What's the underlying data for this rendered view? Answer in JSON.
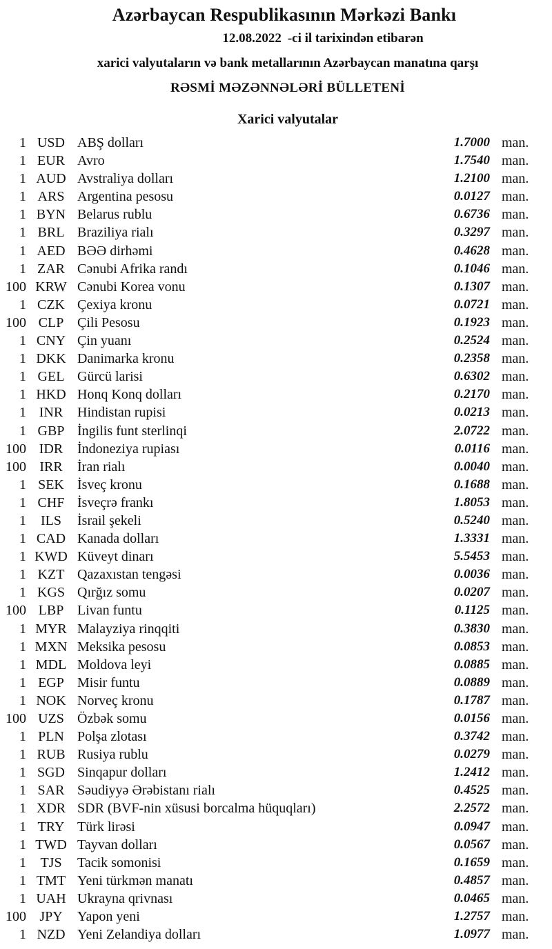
{
  "header": {
    "bank_name": "Azərbaycan Respublikasının Mərkəzi Bankı",
    "date": "12.08.2022",
    "date_suffix": "-ci il tarixindən etibarən",
    "subject_line": "xarici valyutaların və bank metallarının Azərbaycan manatına qarşı",
    "bulletin_title": "RƏSMİ MƏZƏNNƏLƏRİ BÜLLETENİ"
  },
  "section_title": "Xarici valyutalar",
  "unit_label": "man.",
  "text_color": "#111111",
  "background_color": "#ffffff",
  "rates": [
    {
      "nominal": "1",
      "code": "USD",
      "name": "ABŞ dolları",
      "rate": "1.7000"
    },
    {
      "nominal": "1",
      "code": "EUR",
      "name": "Avro",
      "rate": "1.7540"
    },
    {
      "nominal": "1",
      "code": "AUD",
      "name": "Avstraliya dolları",
      "rate": "1.2100"
    },
    {
      "nominal": "1",
      "code": "ARS",
      "name": "Argentina pesosu",
      "rate": "0.0127"
    },
    {
      "nominal": "1",
      "code": "BYN",
      "name": "Belarus rublu",
      "rate": "0.6736"
    },
    {
      "nominal": "1",
      "code": "BRL",
      "name": "Braziliya rialı",
      "rate": "0.3297"
    },
    {
      "nominal": "1",
      "code": "AED",
      "name": "BƏƏ dirhəmi",
      "rate": "0.4628"
    },
    {
      "nominal": "1",
      "code": "ZAR",
      "name": "Cənubi Afrika randı",
      "rate": "0.1046"
    },
    {
      "nominal": "100",
      "code": "KRW",
      "name": "Cənubi Korea vonu",
      "rate": "0.1307"
    },
    {
      "nominal": "1",
      "code": "CZK",
      "name": "Çexiya kronu",
      "rate": "0.0721"
    },
    {
      "nominal": "100",
      "code": "CLP",
      "name": "Çili Pesosu",
      "rate": "0.1923"
    },
    {
      "nominal": "1",
      "code": "CNY",
      "name": "Çin yuanı",
      "rate": "0.2524"
    },
    {
      "nominal": "1",
      "code": "DKK",
      "name": "Danimarka kronu",
      "rate": "0.2358"
    },
    {
      "nominal": "1",
      "code": "GEL",
      "name": "Gürcü larisi",
      "rate": "0.6302"
    },
    {
      "nominal": "1",
      "code": "HKD",
      "name": "Honq Konq dolları",
      "rate": "0.2170"
    },
    {
      "nominal": "1",
      "code": "INR",
      "name": "Hindistan rupisi",
      "rate": "0.0213"
    },
    {
      "nominal": "1",
      "code": "GBP",
      "name": "İngilis funt sterlinqi",
      "rate": "2.0722"
    },
    {
      "nominal": "100",
      "code": "IDR",
      "name": "İndoneziya rupiası",
      "rate": "0.0116"
    },
    {
      "nominal": "100",
      "code": "IRR",
      "name": "İran rialı",
      "rate": "0.0040"
    },
    {
      "nominal": "1",
      "code": "SEK",
      "name": "İsveç kronu",
      "rate": "0.1688"
    },
    {
      "nominal": "1",
      "code": "CHF",
      "name": "İsveçrə frankı",
      "rate": "1.8053"
    },
    {
      "nominal": "1",
      "code": "ILS",
      "name": "İsrail şekeli",
      "rate": "0.5240"
    },
    {
      "nominal": "1",
      "code": "CAD",
      "name": "Kanada dolları",
      "rate": "1.3331"
    },
    {
      "nominal": "1",
      "code": "KWD",
      "name": "Küveyt dinarı",
      "rate": "5.5453"
    },
    {
      "nominal": "1",
      "code": "KZT",
      "name": "Qazaxıstan tengəsi",
      "rate": "0.0036"
    },
    {
      "nominal": "1",
      "code": "KGS",
      "name": "Qırğız somu",
      "rate": "0.0207"
    },
    {
      "nominal": "100",
      "code": "LBP",
      "name": "Livan funtu",
      "rate": "0.1125"
    },
    {
      "nominal": "1",
      "code": "MYR",
      "name": "Malayziya rinqqiti",
      "rate": "0.3830"
    },
    {
      "nominal": "1",
      "code": "MXN",
      "name": "Meksika pesosu",
      "rate": "0.0853"
    },
    {
      "nominal": "1",
      "code": "MDL",
      "name": "Moldova leyi",
      "rate": "0.0885"
    },
    {
      "nominal": "1",
      "code": "EGP",
      "name": "Misir funtu",
      "rate": "0.0889"
    },
    {
      "nominal": "1",
      "code": "NOK",
      "name": "Norveç kronu",
      "rate": "0.1787"
    },
    {
      "nominal": "100",
      "code": "UZS",
      "name": "Özbək somu",
      "rate": "0.0156"
    },
    {
      "nominal": "1",
      "code": "PLN",
      "name": "Polşa zlotası",
      "rate": "0.3742"
    },
    {
      "nominal": "1",
      "code": "RUB",
      "name": "Rusiya rublu",
      "rate": "0.0279"
    },
    {
      "nominal": "1",
      "code": "SGD",
      "name": "Sinqapur dolları",
      "rate": "1.2412"
    },
    {
      "nominal": "1",
      "code": "SAR",
      "name": "Səudiyyə Ərəbistanı rialı",
      "rate": "0.4525"
    },
    {
      "nominal": "1",
      "code": "XDR",
      "name": "SDR (BVF-nin xüsusi borcalma hüquqları)",
      "rate": "2.2572"
    },
    {
      "nominal": "1",
      "code": "TRY",
      "name": "Türk lirəsi",
      "rate": "0.0947"
    },
    {
      "nominal": "1",
      "code": "TWD",
      "name": "Tayvan dolları",
      "rate": "0.0567"
    },
    {
      "nominal": "1",
      "code": "TJS",
      "name": "Tacik somonisi",
      "rate": "0.1659"
    },
    {
      "nominal": "1",
      "code": "TMT",
      "name": "Yeni türkmən manatı",
      "rate": "0.4857"
    },
    {
      "nominal": "1",
      "code": "UAH",
      "name": "Ukrayna qrivnası",
      "rate": "0.0465"
    },
    {
      "nominal": "100",
      "code": "JPY",
      "name": "Yapon yeni",
      "rate": "1.2757"
    },
    {
      "nominal": "1",
      "code": "NZD",
      "name": "Yeni Zelandiya dolları",
      "rate": "1.0977"
    }
  ]
}
